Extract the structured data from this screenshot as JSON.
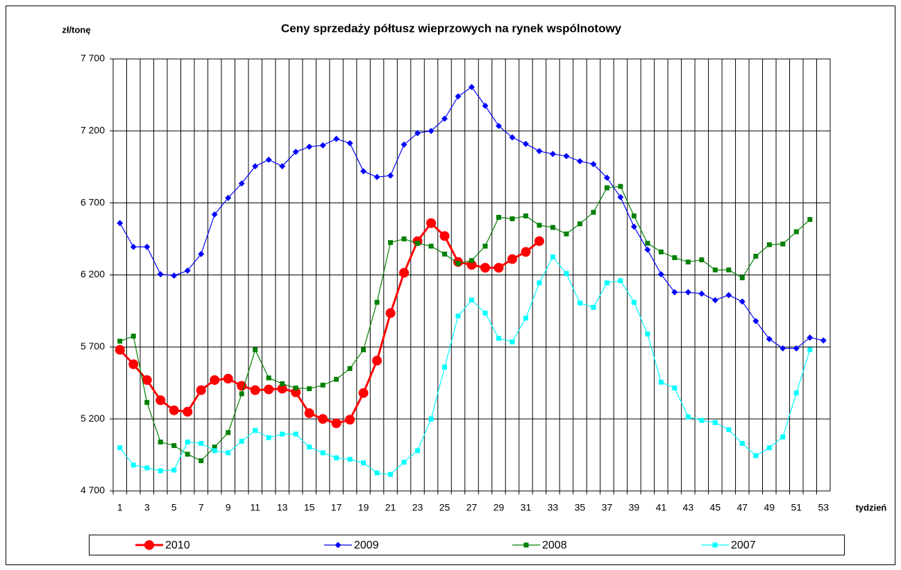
{
  "chart_data": {
    "type": "line",
    "title": "Ceny sprzedaży półtusz wieprzowych na rynek wspólnotowy",
    "y_label": "zł/tonę",
    "x_label": "tydzień",
    "categories": [
      1,
      null,
      3,
      null,
      5,
      null,
      7,
      null,
      9,
      null,
      11,
      null,
      13,
      null,
      15,
      null,
      17,
      null,
      19,
      null,
      21,
      null,
      23,
      null,
      25,
      null,
      27,
      null,
      29,
      null,
      31,
      null,
      33,
      null,
      35,
      null,
      37,
      null,
      39,
      null,
      41,
      null,
      43,
      null,
      45,
      null,
      47,
      null,
      49,
      null,
      51,
      null,
      53
    ],
    "ylim": [
      4700,
      7700
    ],
    "yticks": [
      {
        "value": 4700,
        "label": "4 700"
      },
      {
        "value": 5200,
        "label": "5 200"
      },
      {
        "value": 5700,
        "label": "5 700"
      },
      {
        "value": 6200,
        "label": "6 200"
      },
      {
        "value": 6700,
        "label": "6 700"
      },
      {
        "value": 7200,
        "label": "7 200"
      },
      {
        "value": 7700,
        "label": "7 700"
      }
    ],
    "grid": true,
    "legend": "bottom",
    "series": [
      {
        "name": "2010",
        "color": "#ff0000",
        "marker": "circle",
        "width": 3,
        "values": [
          5680,
          5580,
          5470,
          5330,
          5260,
          5250,
          5400,
          5470,
          5480,
          5430,
          5400,
          5405,
          5410,
          5385,
          5240,
          5200,
          5170,
          5195,
          5380,
          5605,
          5935,
          6215,
          6435,
          6560,
          6470,
          6290,
          6270,
          6250,
          6250,
          6310,
          6360,
          6435,
          null,
          null,
          null,
          null,
          null,
          null,
          null,
          null,
          null,
          null,
          null,
          null,
          null,
          null,
          null,
          null,
          null,
          null,
          null,
          null,
          null
        ]
      },
      {
        "name": "2009",
        "color": "#0000ff",
        "marker": "diamond",
        "width": 1.2,
        "values": [
          6560,
          6395,
          6395,
          6205,
          6195,
          6230,
          6345,
          6620,
          6735,
          6835,
          6955,
          7000,
          6955,
          7055,
          7090,
          7100,
          7145,
          7115,
          6920,
          6880,
          6890,
          7105,
          7185,
          7200,
          7285,
          7440,
          7505,
          7375,
          7235,
          7155,
          7110,
          7060,
          7040,
          7025,
          6990,
          6970,
          6875,
          6740,
          6535,
          6375,
          6205,
          6080,
          6080,
          6070,
          6025,
          6060,
          6015,
          5880,
          5755,
          5690,
          5690,
          5765,
          5745
        ]
      },
      {
        "name": "2008",
        "color": "#008000",
        "marker": "square",
        "width": 1.2,
        "values": [
          5740,
          5775,
          5315,
          5040,
          5015,
          4955,
          4910,
          5005,
          5105,
          5375,
          5680,
          5485,
          5445,
          5415,
          5410,
          5435,
          5475,
          5550,
          5680,
          6010,
          6425,
          6450,
          6420,
          6400,
          6345,
          6280,
          6300,
          6400,
          6600,
          6590,
          6610,
          6545,
          6530,
          6485,
          6555,
          6635,
          6805,
          6815,
          6610,
          6420,
          6360,
          6320,
          6290,
          6305,
          6235,
          6235,
          6180,
          6330,
          6410,
          6415,
          6500,
          6585,
          null
        ]
      },
      {
        "name": "2007",
        "color": "#00ffff",
        "marker": "square",
        "width": 1.2,
        "values": [
          5000,
          4880,
          4860,
          4840,
          4845,
          5040,
          5030,
          4980,
          4965,
          5045,
          5120,
          5070,
          5095,
          5095,
          5005,
          4965,
          4930,
          4920,
          4895,
          4825,
          4815,
          4900,
          4980,
          5200,
          5560,
          5915,
          6025,
          5935,
          5760,
          5735,
          5900,
          6145,
          6325,
          6210,
          6005,
          5975,
          6145,
          6160,
          6010,
          5790,
          5455,
          5415,
          5215,
          5190,
          5175,
          5125,
          5030,
          4945,
          5000,
          5075,
          5380,
          5680,
          null
        ]
      }
    ]
  }
}
